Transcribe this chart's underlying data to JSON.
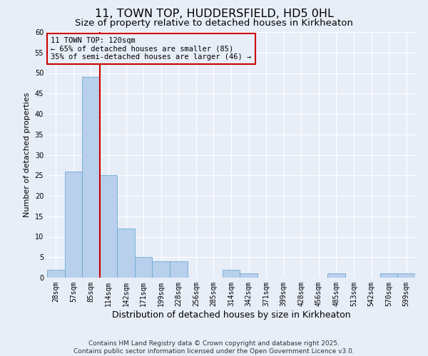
{
  "title": "11, TOWN TOP, HUDDERSFIELD, HD5 0HL",
  "subtitle": "Size of property relative to detached houses in Kirkheaton",
  "xlabel": "Distribution of detached houses by size in Kirkheaton",
  "ylabel": "Number of detached properties",
  "bin_labels": [
    "28sqm",
    "57sqm",
    "85sqm",
    "114sqm",
    "142sqm",
    "171sqm",
    "199sqm",
    "228sqm",
    "256sqm",
    "285sqm",
    "314sqm",
    "342sqm",
    "371sqm",
    "399sqm",
    "428sqm",
    "456sqm",
    "485sqm",
    "513sqm",
    "542sqm",
    "570sqm",
    "599sqm"
  ],
  "bar_values": [
    2,
    26,
    49,
    25,
    12,
    5,
    4,
    4,
    0,
    0,
    2,
    1,
    0,
    0,
    0,
    0,
    1,
    0,
    0,
    1,
    1
  ],
  "ylim": [
    0,
    60
  ],
  "yticks": [
    0,
    5,
    10,
    15,
    20,
    25,
    30,
    35,
    40,
    45,
    50,
    55,
    60
  ],
  "bar_color": "#b8d0eb",
  "bar_edge_color": "#6aaad4",
  "vline_color": "#cc0000",
  "vline_pos": 2.5,
  "annotation_box_text": "11 TOWN TOP: 120sqm\n← 65% of detached houses are smaller (85)\n35% of semi-detached houses are larger (46) →",
  "annotation_box_edge_color": "#cc0000",
  "annotation_text_color": "#000000",
  "background_color": "#e8eef8",
  "plot_bg_color": "#e8eef8",
  "grid_color": "#ffffff",
  "footer_line1": "Contains HM Land Registry data © Crown copyright and database right 2025.",
  "footer_line2": "Contains public sector information licensed under the Open Government Licence v3.0.",
  "title_fontsize": 11.5,
  "subtitle_fontsize": 9.5,
  "xlabel_fontsize": 9,
  "ylabel_fontsize": 8,
  "tick_fontsize": 7,
  "annotation_fontsize": 7.5,
  "footer_fontsize": 6.5
}
